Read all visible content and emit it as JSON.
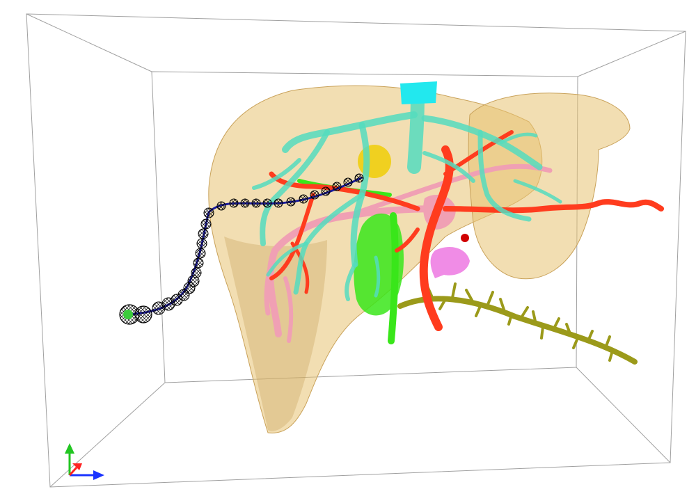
{
  "viewer": {
    "background": "#ffffff"
  },
  "bounding_box": {
    "color": "#a0a0a0"
  },
  "liver": {
    "color": "#e8c272",
    "opacity": 0.55
  },
  "structures": [
    {
      "name": "hepatic-veins",
      "color": "#55dcbe"
    },
    {
      "name": "inferior-vena-cava-stump",
      "color": "#22e8ee"
    },
    {
      "name": "hepatic-artery",
      "color": "#ff3c1e"
    },
    {
      "name": "portal-vein",
      "color": "#f0a0b4"
    },
    {
      "name": "gallbladder",
      "color": "#39e61a"
    },
    {
      "name": "tumor",
      "color": "#f0d020"
    },
    {
      "name": "pancreatic-duct",
      "color": "#9b9a1a"
    },
    {
      "name": "duodenum-fragment",
      "color": "#f08ce6"
    }
  ],
  "catheter": {
    "line_color": "#1a1a9a",
    "marker_style": "wireframe-sphere",
    "marker_color": "#000000",
    "tip_fill": "#3ccc3c"
  },
  "axes": {
    "x_color": "#1a33ff",
    "y_color": "#22c622",
    "z_color": "#ff2222"
  }
}
